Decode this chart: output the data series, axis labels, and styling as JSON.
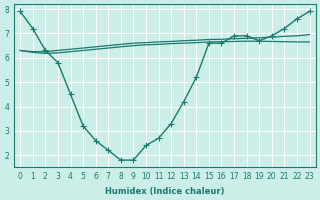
{
  "xlabel": "Humidex (Indice chaleur)",
  "ylabel": "",
  "background_color": "#cceee8",
  "grid_color": "#ffffff",
  "line_color": "#1a7a6e",
  "x": [
    0,
    1,
    2,
    3,
    4,
    5,
    6,
    7,
    8,
    9,
    10,
    11,
    12,
    13,
    14,
    15,
    16,
    17,
    18,
    19,
    20,
    21,
    22,
    23
  ],
  "y_main": [
    7.9,
    7.2,
    6.3,
    5.8,
    4.5,
    3.2,
    2.6,
    2.2,
    1.8,
    1.8,
    2.4,
    2.7,
    3.3,
    4.2,
    5.2,
    6.6,
    6.6,
    6.9,
    6.9,
    6.7,
    6.9,
    7.2,
    7.6,
    7.9
  ],
  "y_upper": [
    6.3,
    6.25,
    6.25,
    6.3,
    6.35,
    6.4,
    6.45,
    6.5,
    6.55,
    6.6,
    6.62,
    6.65,
    6.67,
    6.7,
    6.72,
    6.75,
    6.76,
    6.78,
    6.8,
    6.82,
    6.85,
    6.88,
    6.9,
    6.95
  ],
  "y_lower": [
    6.3,
    6.22,
    6.18,
    6.2,
    6.25,
    6.3,
    6.35,
    6.4,
    6.45,
    6.5,
    6.53,
    6.55,
    6.58,
    6.6,
    6.62,
    6.65,
    6.66,
    6.67,
    6.68,
    6.68,
    6.67,
    6.66,
    6.65,
    6.65
  ],
  "ylim": [
    1.5,
    8.2
  ],
  "xlim": [
    -0.5,
    23.5
  ],
  "yticks": [
    2,
    3,
    4,
    5,
    6,
    7,
    8
  ],
  "xticks": [
    0,
    1,
    2,
    3,
    4,
    5,
    6,
    7,
    8,
    9,
    10,
    11,
    12,
    13,
    14,
    15,
    16,
    17,
    18,
    19,
    20,
    21,
    22,
    23
  ]
}
